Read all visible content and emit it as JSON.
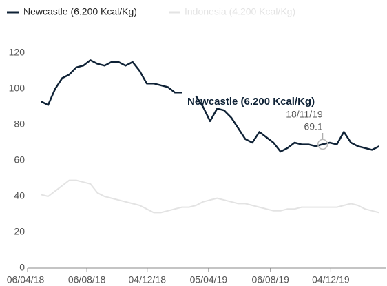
{
  "chart_data": {
    "type": "line",
    "x": [
      "2018-05-07",
      "2018-05-21",
      "2018-06-04",
      "2018-06-18",
      "2018-07-02",
      "2018-07-16",
      "2018-07-30",
      "2018-08-13",
      "2018-08-27",
      "2018-09-10",
      "2018-09-24",
      "2018-10-08",
      "2018-10-22",
      "2018-11-05",
      "2018-11-19",
      "2018-12-03",
      "2018-12-17",
      "2018-12-31",
      "2019-01-14",
      "2019-01-28",
      "2019-02-11",
      "2019-02-25",
      "2019-03-11",
      "2019-03-25",
      "2019-04-08",
      "2019-04-22",
      "2019-05-06",
      "2019-05-20",
      "2019-06-03",
      "2019-06-17",
      "2019-07-01",
      "2019-07-15",
      "2019-07-29",
      "2019-08-12",
      "2019-08-26",
      "2019-09-09",
      "2019-09-23",
      "2019-10-07",
      "2019-10-21",
      "2019-11-04",
      "2019-11-18",
      "2019-12-02",
      "2019-12-16",
      "2019-12-30",
      "2020-01-13",
      "2020-01-27",
      "2020-02-10",
      "2020-02-24",
      "2020-03-09"
    ],
    "series": [
      {
        "name": "Newcastle (6.200 Kcal/Kg)",
        "color": "#0f2236",
        "values": [
          93,
          91,
          100,
          106,
          108,
          112,
          113,
          116,
          114,
          113,
          115,
          115,
          113,
          115,
          110,
          103,
          103,
          102,
          101,
          98,
          98,
          null,
          96,
          90,
          82,
          89,
          88,
          84,
          78,
          72,
          70,
          76,
          73,
          70,
          65,
          67,
          70,
          69,
          69,
          68,
          69.1,
          70,
          69,
          76,
          70,
          68,
          67,
          66,
          68
        ]
      },
      {
        "name": "Indonesia (4.200 Kcal/Kg)",
        "color": "#e3e3e3",
        "values": [
          41,
          40,
          43,
          46,
          49,
          49,
          48,
          47,
          42,
          40,
          39,
          38,
          37,
          36,
          35,
          33,
          31,
          31,
          32,
          33,
          34,
          34,
          35,
          37,
          38,
          39,
          38,
          37,
          36,
          36,
          35,
          34,
          33,
          32,
          32,
          33,
          33,
          34,
          34,
          34,
          34,
          34,
          34,
          35,
          36,
          35,
          33,
          32,
          31
        ]
      }
    ],
    "xlim": [
      "2018-04-06",
      "2020-03-22"
    ],
    "xticks": [
      {
        "value": "2018-04-06",
        "label": "06/04/18"
      },
      {
        "value": "2018-08-06",
        "label": "06/08/18"
      },
      {
        "value": "2018-12-04",
        "label": "04/12/18"
      },
      {
        "value": "2019-04-05",
        "label": "05/04/19"
      },
      {
        "value": "2019-08-06",
        "label": "06/08/19"
      },
      {
        "value": "2019-12-04",
        "label": "04/12/19"
      }
    ],
    "ylim": [
      0,
      125
    ],
    "yticks": [
      0,
      20,
      40,
      60,
      80,
      100,
      120
    ],
    "grid": false,
    "annotation": {
      "series_label": "Newcastle (6.200 Kcal/Kg)",
      "x": "2019-11-18",
      "x_label": "18/11/19",
      "value": 69.1
    }
  }
}
